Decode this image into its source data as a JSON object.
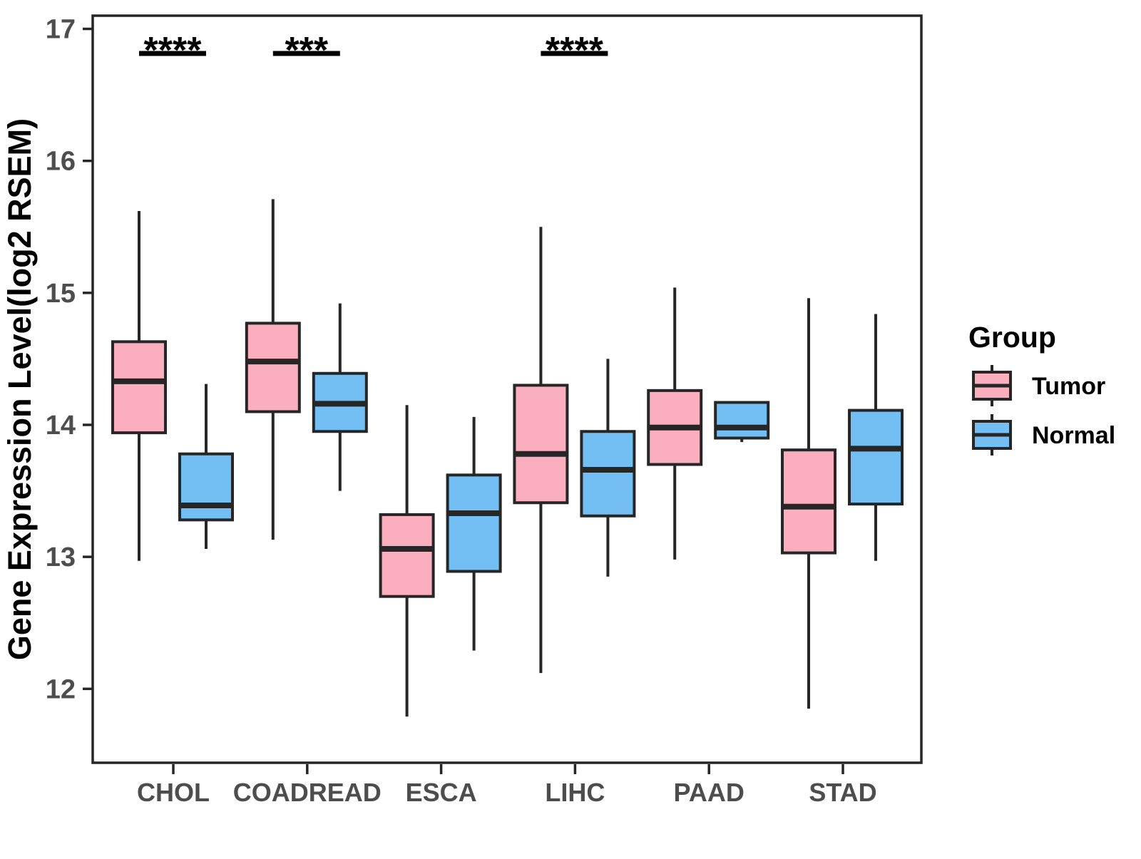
{
  "chart_data": {
    "type": "boxplot",
    "title": "",
    "xlabel": "",
    "ylabel": "Gene Expression Level(log2 RSEM)",
    "categories": [
      "CHOL",
      "COADREAD",
      "ESCA",
      "LIHC",
      "PAAD",
      "STAD"
    ],
    "ylim": [
      11.44,
      17.1
    ],
    "yticks": [
      12,
      13,
      14,
      15,
      16,
      17
    ],
    "ytick_labels": [
      "12",
      "13",
      "14",
      "15",
      "16",
      "17"
    ],
    "grid": false,
    "legend": {
      "title": "Group",
      "position": "right"
    },
    "series": [
      {
        "name": "Tumor",
        "fill": "#FAAEBE",
        "boxes": [
          {
            "category": "CHOL",
            "whisker_low": 12.97,
            "q1": 13.94,
            "median": 14.33,
            "q3": 14.63,
            "whisker_high": 15.62
          },
          {
            "category": "COADREAD",
            "whisker_low": 13.13,
            "q1": 14.1,
            "median": 14.48,
            "q3": 14.77,
            "whisker_high": 15.71
          },
          {
            "category": "ESCA",
            "whisker_low": 11.79,
            "q1": 12.7,
            "median": 13.06,
            "q3": 13.32,
            "whisker_high": 14.15
          },
          {
            "category": "LIHC",
            "whisker_low": 12.12,
            "q1": 13.41,
            "median": 13.78,
            "q3": 14.3,
            "whisker_high": 15.5
          },
          {
            "category": "PAAD",
            "whisker_low": 12.98,
            "q1": 13.7,
            "median": 13.98,
            "q3": 14.26,
            "whisker_high": 15.04
          },
          {
            "category": "STAD",
            "whisker_low": 11.85,
            "q1": 13.03,
            "median": 13.38,
            "q3": 13.81,
            "whisker_high": 14.96
          }
        ]
      },
      {
        "name": "Normal",
        "fill": "#73BFF4",
        "boxes": [
          {
            "category": "CHOL",
            "whisker_low": 13.06,
            "q1": 13.28,
            "median": 13.39,
            "q3": 13.78,
            "whisker_high": 14.31
          },
          {
            "category": "COADREAD",
            "whisker_low": 13.5,
            "q1": 13.95,
            "median": 14.16,
            "q3": 14.39,
            "whisker_high": 14.92
          },
          {
            "category": "ESCA",
            "whisker_low": 12.29,
            "q1": 12.89,
            "median": 13.33,
            "q3": 13.62,
            "whisker_high": 14.06
          },
          {
            "category": "LIHC",
            "whisker_low": 12.85,
            "q1": 13.31,
            "median": 13.66,
            "q3": 13.95,
            "whisker_high": 14.5
          },
          {
            "category": "PAAD",
            "whisker_low": 13.87,
            "q1": 13.9,
            "median": 13.98,
            "q3": 14.17,
            "whisker_high": 14.17
          },
          {
            "category": "STAD",
            "whisker_low": 12.97,
            "q1": 13.4,
            "median": 13.82,
            "q3": 14.11,
            "whisker_high": 14.84
          }
        ]
      }
    ],
    "significance": [
      {
        "category": "CHOL",
        "label": "****"
      },
      {
        "category": "COADREAD",
        "label": "***"
      },
      {
        "category": "LIHC",
        "label": "****"
      }
    ],
    "colors": {
      "tumor_fill": "#FAAEBE",
      "normal_fill": "#73BFF4",
      "box_border": "#262626",
      "tick_label": "#4d4d4d",
      "annotation": "#000000"
    }
  }
}
